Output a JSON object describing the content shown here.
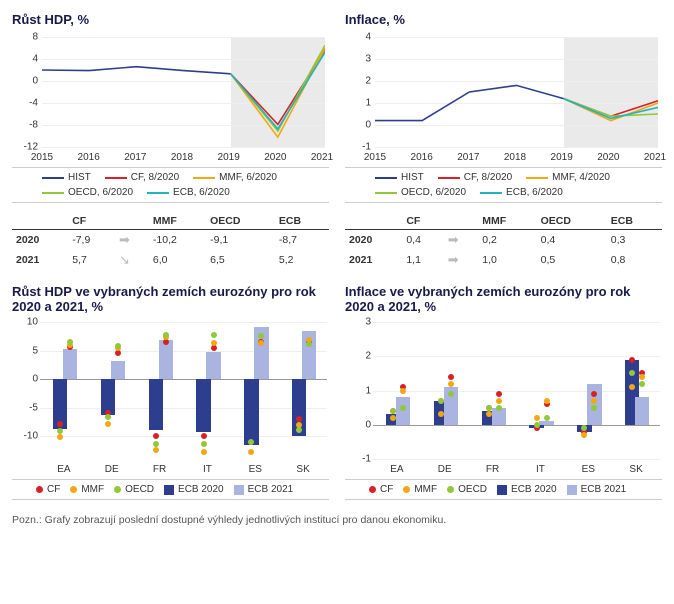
{
  "colors": {
    "hist": "#2d3e8f",
    "cf": "#d92027",
    "mmf": "#f3a712",
    "oecd": "#8fc93a",
    "ecb": "#1fb4bf",
    "ecb2020": "#2d3e8f",
    "ecb2021": "#a9b4e0",
    "shade": "#eaeaea",
    "grid": "#eeeeee",
    "axis": "#999999"
  },
  "lineCharts": [
    {
      "title": "Růst HDP, %",
      "ylim": [
        -12,
        8
      ],
      "ytick_step": 4,
      "years": [
        2015,
        2016,
        2017,
        2018,
        2019,
        2020,
        2021
      ],
      "shade_from": 2019,
      "shade_to": 2021,
      "series": [
        {
          "name": "HIST",
          "legend": "HIST",
          "colorKey": "hist",
          "points": [
            [
              2015,
              2.0
            ],
            [
              2016,
              1.9
            ],
            [
              2017,
              2.6
            ],
            [
              2018,
              1.9
            ],
            [
              2019,
              1.3
            ]
          ]
        },
        {
          "name": "CF, 8/2020",
          "legend": "CF, 8/2020",
          "colorKey": "cf",
          "points": [
            [
              2019,
              1.3
            ],
            [
              2020,
              -7.9
            ],
            [
              2021,
              5.7
            ]
          ]
        },
        {
          "name": "MMF, 6/2020",
          "legend": "MMF, 6/2020",
          "colorKey": "mmf",
          "points": [
            [
              2019,
              1.3
            ],
            [
              2020,
              -10.2
            ],
            [
              2021,
              6.0
            ]
          ]
        },
        {
          "name": "OECD, 6/2020",
          "legend": "OECD, 6/2020",
          "colorKey": "oecd",
          "points": [
            [
              2019,
              1.3
            ],
            [
              2020,
              -9.1
            ],
            [
              2021,
              6.5
            ]
          ]
        },
        {
          "name": "ECB, 6/2020",
          "legend": "ECB, 6/2020",
          "colorKey": "ecb",
          "points": [
            [
              2019,
              1.3
            ],
            [
              2020,
              -8.7
            ],
            [
              2021,
              5.2
            ]
          ]
        }
      ],
      "table": {
        "cols": [
          "CF",
          "MMF",
          "OECD",
          "ECB"
        ],
        "rows": [
          {
            "year": "2020",
            "vals": [
              "-7,9",
              "-10,2",
              "-9,1",
              "-8,7"
            ],
            "arrow": "➡"
          },
          {
            "year": "2021",
            "vals": [
              "5,7",
              "6,0",
              "6,5",
              "5,2"
            ],
            "arrow": "↘"
          }
        ]
      }
    },
    {
      "title": "Inflace, %",
      "ylim": [
        -1,
        4
      ],
      "ytick_step": 1,
      "years": [
        2015,
        2016,
        2017,
        2018,
        2019,
        2020,
        2021
      ],
      "shade_from": 2019,
      "shade_to": 2021,
      "series": [
        {
          "name": "HIST",
          "legend": "HIST",
          "colorKey": "hist",
          "points": [
            [
              2015,
              0.2
            ],
            [
              2016,
              0.2
            ],
            [
              2017,
              1.5
            ],
            [
              2018,
              1.8
            ],
            [
              2019,
              1.2
            ]
          ]
        },
        {
          "name": "CF, 8/2020",
          "legend": "CF, 8/2020",
          "colorKey": "cf",
          "points": [
            [
              2019,
              1.2
            ],
            [
              2020,
              0.4
            ],
            [
              2021,
              1.1
            ]
          ]
        },
        {
          "name": "MMF, 4/2020",
          "legend": "MMF, 4/2020",
          "colorKey": "mmf",
          "points": [
            [
              2019,
              1.2
            ],
            [
              2020,
              0.2
            ],
            [
              2021,
              1.0
            ]
          ]
        },
        {
          "name": "OECD, 6/2020",
          "legend": "OECD, 6/2020",
          "colorKey": "oecd",
          "points": [
            [
              2019,
              1.2
            ],
            [
              2020,
              0.4
            ],
            [
              2021,
              0.5
            ]
          ]
        },
        {
          "name": "ECB, 6/2020",
          "legend": "ECB, 6/2020",
          "colorKey": "ecb",
          "points": [
            [
              2019,
              1.2
            ],
            [
              2020,
              0.3
            ],
            [
              2021,
              0.8
            ]
          ]
        }
      ],
      "table": {
        "cols": [
          "CF",
          "MMF",
          "OECD",
          "ECB"
        ],
        "rows": [
          {
            "year": "2020",
            "vals": [
              "0,4",
              "0,2",
              "0,4",
              "0,3"
            ],
            "arrow": "➡"
          },
          {
            "year": "2021",
            "vals": [
              "1,1",
              "1,0",
              "0,5",
              "0,8"
            ],
            "arrow": "➡"
          }
        ]
      }
    }
  ],
  "barCharts": [
    {
      "title": "Růst HDP ve vybraných zemích eurozóny pro rok 2020 a 2021, %",
      "ylim": [
        -14,
        10
      ],
      "yticks": [
        -10,
        -5,
        0,
        5,
        10
      ],
      "categories": [
        "EA",
        "DE",
        "FR",
        "IT",
        "ES",
        "SK"
      ],
      "bars": {
        "ecb2020": [
          -8.7,
          -6.3,
          -9.0,
          -9.2,
          -11.6,
          -10.0
        ],
        "ecb2021": [
          5.2,
          3.2,
          6.9,
          4.8,
          9.1,
          8.4
        ]
      },
      "dots": {
        "cf": [
          -7.9,
          -6.0,
          -10.0,
          -10.0,
          -11.0,
          -7.0
        ],
        "mmf": [
          -10.2,
          -7.8,
          -12.5,
          -12.8,
          -12.8,
          -8.0
        ],
        "oecd": [
          -9.1,
          -6.6,
          -11.4,
          -11.3,
          -11.1,
          -9.0
        ]
      },
      "dots2021": {
        "cf": [
          5.7,
          4.5,
          6.5,
          5.5,
          6.5,
          6.5
        ],
        "mmf": [
          6.0,
          5.4,
          7.3,
          6.3,
          6.3,
          6.9
        ],
        "oecd": [
          6.5,
          5.8,
          7.7,
          7.7,
          7.5,
          6.2
        ]
      }
    },
    {
      "title": "Inflace ve vybraných zemích eurozóny pro rok 2020 a 2021, %",
      "ylim": [
        -1,
        3
      ],
      "yticks": [
        -1,
        0,
        1,
        2,
        3
      ],
      "categories": [
        "EA",
        "DE",
        "FR",
        "IT",
        "ES",
        "SK"
      ],
      "bars": {
        "ecb2020": [
          0.3,
          0.7,
          0.4,
          -0.1,
          -0.2,
          1.9
        ],
        "ecb2021": [
          0.8,
          1.1,
          0.5,
          0.1,
          1.2,
          0.8
        ]
      },
      "dots": {
        "cf": [
          0.4,
          0.7,
          0.5,
          -0.1,
          -0.2,
          1.9
        ],
        "mmf": [
          0.2,
          0.3,
          0.3,
          0.2,
          -0.3,
          1.1
        ],
        "oecd": [
          0.4,
          0.7,
          0.5,
          0.0,
          -0.1,
          1.5
        ]
      },
      "dots2021": {
        "cf": [
          1.1,
          1.4,
          0.9,
          0.6,
          0.9,
          1.5
        ],
        "mmf": [
          1.0,
          1.2,
          0.7,
          0.7,
          0.7,
          1.4
        ],
        "oecd": [
          0.5,
          0.9,
          0.5,
          0.2,
          0.5,
          1.2
        ]
      }
    }
  ],
  "barLegend": [
    {
      "key": "cf",
      "label": "CF",
      "type": "dot"
    },
    {
      "key": "mmf",
      "label": "MMF",
      "type": "dot"
    },
    {
      "key": "oecd",
      "label": "OECD",
      "type": "dot"
    },
    {
      "key": "ecb2020",
      "label": "ECB 2020",
      "type": "square"
    },
    {
      "key": "ecb2021",
      "label": "ECB 2021",
      "type": "square"
    }
  ],
  "footnote": "Pozn.: Grafy zobrazují poslední dostupné výhledy jednotlivých institucí pro danou ekonomiku."
}
